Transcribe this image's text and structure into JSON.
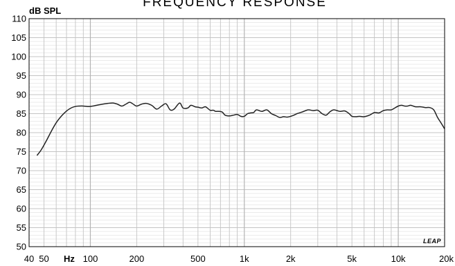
{
  "chart_data": {
    "type": "line",
    "title": "FREQUENCY RESPONSE",
    "ylabel": "dB SPL",
    "xlabel": "Hz",
    "x_scale": "log",
    "xlim": [
      40,
      20000
    ],
    "ylim": [
      50,
      110
    ],
    "grid": true,
    "y_ticks": [
      50,
      55,
      60,
      65,
      70,
      75,
      80,
      85,
      90,
      95,
      100,
      105,
      110
    ],
    "x_tick_labels": [
      {
        "value": 40,
        "label": "40"
      },
      {
        "value": 50,
        "label": "50"
      },
      {
        "value": 100,
        "label": "100"
      },
      {
        "value": 200,
        "label": "200"
      },
      {
        "value": 500,
        "label": "500"
      },
      {
        "value": 1000,
        "label": "1k"
      },
      {
        "value": 2000,
        "label": "2k"
      },
      {
        "value": 5000,
        "label": "5k"
      },
      {
        "value": 10000,
        "label": "10k"
      },
      {
        "value": 20000,
        "label": "20k"
      }
    ],
    "series": [
      {
        "color": "#222222",
        "x": [
          45,
          48,
          52,
          56,
          60,
          65,
          70,
          75,
          80,
          85,
          90,
          95,
          100,
          110,
          120,
          130,
          140,
          150,
          160,
          170,
          180,
          190,
          200,
          215,
          230,
          250,
          270,
          290,
          310,
          330,
          350,
          380,
          400,
          430,
          450,
          480,
          500,
          530,
          560,
          600,
          630,
          650,
          680,
          720,
          750,
          800,
          850,
          900,
          950,
          1000,
          1050,
          1100,
          1150,
          1200,
          1300,
          1400,
          1500,
          1600,
          1700,
          1800,
          1900,
          2000,
          2100,
          2200,
          2400,
          2600,
          2800,
          3000,
          3200,
          3400,
          3600,
          3800,
          4000,
          4200,
          4500,
          4800,
          5000,
          5300,
          5600,
          6000,
          6500,
          7000,
          7500,
          8000,
          8500,
          9000,
          9500,
          10000,
          10500,
          11000,
          11500,
          12000,
          12500,
          13000,
          14000,
          15000,
          16000,
          17000,
          18000,
          19000,
          20000
        ],
        "y": [
          74.0,
          75.5,
          78.0,
          80.5,
          82.6,
          84.4,
          85.7,
          86.5,
          86.9,
          87.0,
          87.0,
          86.9,
          86.9,
          87.2,
          87.5,
          87.7,
          87.8,
          87.5,
          87.0,
          87.5,
          88.0,
          87.5,
          87.0,
          87.5,
          87.7,
          87.2,
          86.2,
          87.0,
          87.6,
          86.0,
          86.2,
          87.8,
          86.5,
          86.5,
          87.2,
          86.8,
          86.7,
          86.5,
          86.8,
          85.9,
          85.9,
          85.6,
          85.6,
          85.4,
          84.6,
          84.4,
          84.6,
          84.8,
          84.3,
          84.3,
          85.0,
          85.2,
          85.3,
          86.0,
          85.6,
          86.0,
          85.0,
          84.5,
          84.0,
          84.2,
          84.1,
          84.3,
          84.6,
          85.0,
          85.5,
          86.0,
          85.8,
          85.9,
          85.0,
          84.6,
          85.5,
          86.0,
          85.8,
          85.6,
          85.7,
          85.0,
          84.3,
          84.2,
          84.3,
          84.2,
          84.6,
          85.3,
          85.2,
          85.8,
          86.0,
          86.0,
          86.5,
          87.0,
          87.2,
          87.0,
          87.0,
          87.2,
          87.0,
          86.8,
          86.8,
          86.6,
          86.6,
          86.0,
          84.0,
          82.5,
          81.0
        ]
      }
    ],
    "logo_text": "LEAP",
    "colors": {
      "grid_fine": "#d8d8d8",
      "grid_major": "#c4c4c4",
      "line": "#222222",
      "frame": "#000000"
    }
  }
}
